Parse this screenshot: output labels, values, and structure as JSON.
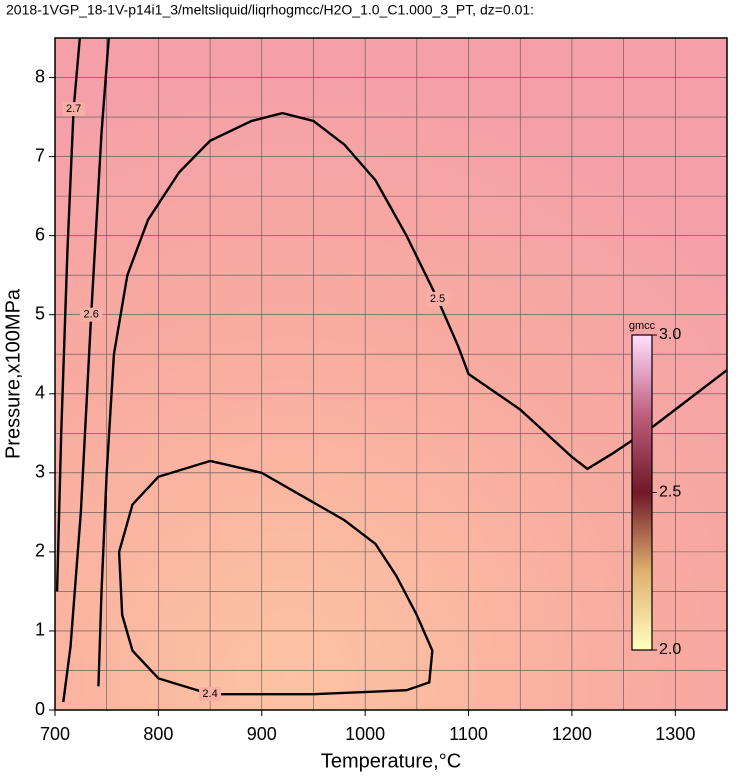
{
  "chart_data": {
    "type": "contour",
    "title": "2018-1VGP_18-1V-p14i1_3/meltsliquid/liqrhogmcc/H2O_1.0_C1.000_3_PT, dz=0.01:",
    "x_label": "Temperature,°C",
    "y_label": "Pressure,x100MPa",
    "xlim": [
      700,
      1350
    ],
    "ylim": [
      0,
      8.5
    ],
    "xticks": [
      700,
      800,
      900,
      1000,
      1100,
      1200,
      1300
    ],
    "yticks": [
      0,
      1,
      2,
      3,
      4,
      5,
      6,
      7,
      8
    ],
    "xminorticks": [
      750,
      850,
      950,
      1050,
      1150,
      1250
    ],
    "yminorticks": [
      0.5,
      1.5,
      2.5,
      3.5,
      4.5,
      5.5,
      6.5,
      7.5
    ],
    "grid": true,
    "colorbar": {
      "label": "gmcc",
      "clim": [
        2,
        3
      ],
      "ticks": [
        {
          "value": 2,
          "label": "2.0"
        },
        2.5,
        {
          "value": 3,
          "label": "3.0"
        }
      ],
      "colors": [
        "#ffffc0",
        "#e0b070",
        "#701828",
        "#c06080",
        "#ffe0ff"
      ]
    },
    "contours": [
      {
        "level": 2.5,
        "x": [
          742,
          745,
          750,
          757,
          770,
          790,
          820,
          850,
          890,
          920,
          950,
          980,
          1010,
          1040,
          1070,
          1090,
          1100,
          1150,
          1200,
          1215,
          1240,
          1280,
          1320,
          1350
        ],
        "y": [
          0.3,
          1.5,
          3,
          4.5,
          5.5,
          6.2,
          6.8,
          7.2,
          7.45,
          7.55,
          7.45,
          7.15,
          6.7,
          6.0,
          5.2,
          4.6,
          4.25,
          3.8,
          3.2,
          3.05,
          3.25,
          3.6,
          4.0,
          4.3
        ]
      },
      {
        "level": 2.4,
        "x": [
          850,
          900,
          940,
          980,
          1010,
          1030,
          1050,
          1065,
          1062,
          1040,
          950,
          850,
          800,
          775,
          765,
          762,
          775,
          800,
          850
        ],
        "y": [
          3.15,
          3.0,
          2.7,
          2.4,
          2.1,
          1.7,
          1.2,
          0.75,
          0.35,
          0.25,
          0.2,
          0.2,
          0.4,
          0.75,
          1.2,
          2.0,
          2.6,
          2.95,
          3.15
        ]
      },
      {
        "level": 2.6,
        "x": [
          708,
          715,
          725,
          735,
          745,
          752
        ],
        "y": [
          0.1,
          0.8,
          2.5,
          5.0,
          7.3,
          8.5
        ]
      },
      {
        "level": 2.7,
        "x": [
          702,
          706,
          712,
          718,
          724
        ],
        "y": [
          1.5,
          3.5,
          5.8,
          7.6,
          8.5
        ]
      }
    ]
  }
}
